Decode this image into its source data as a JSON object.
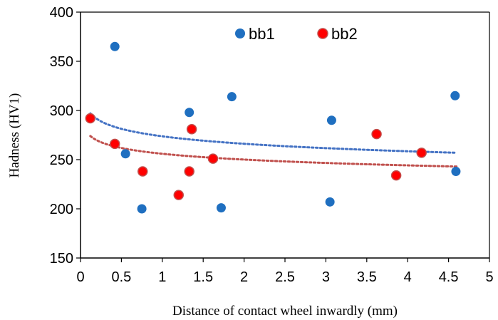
{
  "chart_data": {
    "type": "scatter",
    "title": "",
    "xlabel": "Distance of contact wheel inwardly (mm)",
    "ylabel": "Hadness (HV1)",
    "xlim": [
      0,
      5
    ],
    "ylim": [
      150,
      400
    ],
    "x_ticks": [
      0,
      0.5,
      1,
      1.5,
      2,
      2.5,
      3,
      3.5,
      4,
      4.5,
      5
    ],
    "x_tick_labels": [
      "0",
      "0.5",
      "1",
      "1.5",
      "2",
      "2.5",
      "3",
      "3.5",
      "4",
      "4.5",
      "5"
    ],
    "y_ticks": [
      150,
      200,
      250,
      300,
      350,
      400
    ],
    "y_tick_labels": [
      "150",
      "200",
      "250",
      "300",
      "350",
      "400"
    ],
    "grid": false,
    "legend_position": "top",
    "series": [
      {
        "name": "bb1",
        "color": "#1f6fc0",
        "trend_color": "#4472c4",
        "trend_start": [
          0.12,
          297
        ],
        "trend_end": [
          4.6,
          257
        ],
        "points": [
          [
            0.12,
            292
          ],
          [
            0.42,
            365
          ],
          [
            0.55,
            256
          ],
          [
            0.75,
            200
          ],
          [
            1.33,
            298
          ],
          [
            1.72,
            201
          ],
          [
            1.85,
            314
          ],
          [
            3.05,
            207
          ],
          [
            3.07,
            290
          ],
          [
            4.58,
            315
          ],
          [
            4.59,
            238
          ]
        ]
      },
      {
        "name": "bb2",
        "color": "#ff0000",
        "edge_color": "#c0504d",
        "trend_color": "#c0504d",
        "trend_start": [
          0.12,
          274
        ],
        "trend_end": [
          4.6,
          243
        ],
        "points": [
          [
            0.12,
            292
          ],
          [
            0.42,
            266
          ],
          [
            0.76,
            238
          ],
          [
            1.2,
            214
          ],
          [
            1.33,
            238
          ],
          [
            1.36,
            281
          ],
          [
            1.62,
            251
          ],
          [
            3.62,
            276
          ],
          [
            3.86,
            234
          ],
          [
            4.17,
            257
          ]
        ]
      }
    ]
  }
}
